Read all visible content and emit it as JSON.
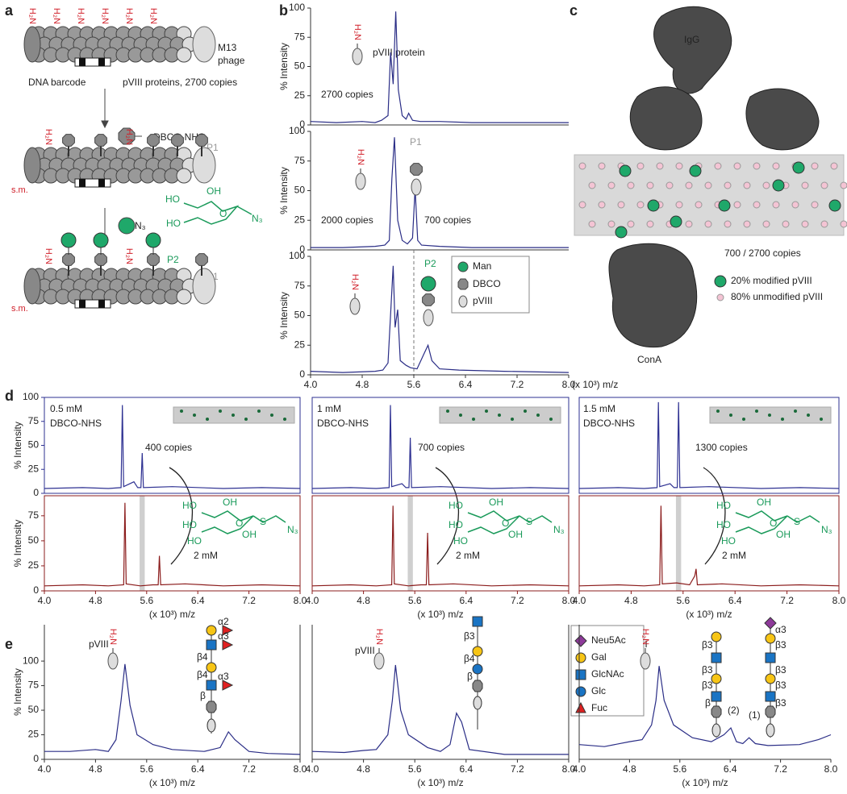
{
  "panel_labels": [
    "a",
    "b",
    "c",
    "d",
    "e"
  ],
  "amine_label": "H₂N",
  "panel_a": {
    "phage_label": [
      "M13",
      "phage"
    ],
    "barcode": "DNA barcode",
    "proteins": "pVIII proteins, 2700 copies",
    "reagent": "DBCO-NHS",
    "sm": "s.m.",
    "p1": "P1",
    "p2": "P2",
    "azide": "N₃",
    "sugar_labels": [
      "HO",
      "OH",
      "HO",
      "O",
      "N₃"
    ]
  },
  "legend_b": [
    "Man",
    "DBCO",
    "pVIII"
  ],
  "panel_c": {
    "igg": "IgG",
    "copies": "700 / 2700 copies",
    "modified": "20% modified pVIII",
    "unmodified": "80% unmodified pVIII",
    "cona": "ConA"
  },
  "panel_d": {
    "sugar_labels": [
      "HO",
      "OH",
      "HO",
      "HO",
      "O",
      "OH",
      "S",
      "N₃"
    ]
  },
  "legend_e": [
    "Neu5Ac",
    "Gal",
    "GlcNAc",
    "Glc",
    "Fuc"
  ],
  "chart_data": [
    {
      "type": "line",
      "color": "#2a2d86",
      "ylabel": "% Intensity",
      "annotations": [
        "pVIII protein",
        "2700 copies"
      ],
      "xlim": [
        4.0,
        8.0
      ],
      "ylim": [
        0,
        100
      ],
      "yticks": [
        0,
        25,
        50,
        75,
        100
      ],
      "x": [
        4.0,
        4.4,
        4.8,
        5.0,
        5.1,
        5.2,
        5.24,
        5.28,
        5.32,
        5.36,
        5.42,
        5.48,
        5.52,
        5.58,
        5.7,
        6.0,
        6.5,
        7.0,
        7.5,
        8.0
      ],
      "values": [
        3,
        2,
        3,
        2,
        4,
        8,
        62,
        35,
        97,
        30,
        8,
        5,
        10,
        4,
        3,
        3,
        2,
        2,
        2,
        2
      ]
    },
    {
      "type": "line",
      "color": "#2a2d86",
      "ylabel": "% Intensity",
      "annotations": [
        "2000 copies",
        "700 copies",
        "P1"
      ],
      "xlim": [
        4.0,
        8.0
      ],
      "ylim": [
        0,
        100
      ],
      "yticks": [
        0,
        25,
        50,
        75,
        100
      ],
      "x": [
        4.0,
        4.5,
        5.0,
        5.15,
        5.22,
        5.26,
        5.3,
        5.35,
        5.42,
        5.5,
        5.58,
        5.62,
        5.66,
        5.72,
        6.0,
        6.5,
        7.0,
        8.0
      ],
      "values": [
        2,
        2,
        3,
        4,
        8,
        60,
        95,
        25,
        8,
        5,
        10,
        52,
        8,
        4,
        3,
        2,
        2,
        2
      ]
    },
    {
      "type": "line",
      "color": "#2a2d86",
      "ylabel": "% Intensity",
      "xlabel": "(x 10³) m/z",
      "annotations": [
        "P2"
      ],
      "vline": 5.6,
      "xlim": [
        4.0,
        8.0
      ],
      "ylim": [
        0,
        100
      ],
      "yticks": [
        0,
        25,
        50,
        75,
        100
      ],
      "xticks": [
        {
          "value": 4,
          "label": "4.0"
        },
        4.8,
        5.6,
        6.4,
        7.2,
        {
          "value": 8,
          "label": "8.0"
        }
      ],
      "x": [
        4.0,
        4.5,
        5.0,
        5.12,
        5.2,
        5.28,
        5.31,
        5.35,
        5.39,
        5.48,
        5.55,
        5.65,
        5.76,
        5.82,
        5.88,
        6.0,
        6.3,
        7.0,
        8.0
      ],
      "values": [
        3,
        2,
        3,
        4,
        10,
        92,
        40,
        55,
        12,
        8,
        6,
        5,
        18,
        25,
        12,
        5,
        4,
        3,
        2
      ]
    },
    {
      "type": "line",
      "color": "#2e3192",
      "ylabel": "% Intensity",
      "annotations": [
        "0.5 mM",
        "DBCO-NHS",
        "400 copies"
      ],
      "xlim": [
        4.0,
        8.0
      ],
      "ylim": [
        0,
        100
      ],
      "yticks": [
        0,
        25,
        50,
        75,
        100
      ],
      "x": [
        4.0,
        4.6,
        5.0,
        5.2,
        5.22,
        5.24,
        5.4,
        5.46,
        5.51,
        5.53,
        5.55,
        6.0,
        6.8,
        7.4,
        8.0
      ],
      "values": [
        5,
        6,
        5,
        6,
        92,
        7,
        12,
        6,
        6,
        42,
        6,
        7,
        5,
        6,
        5
      ]
    },
    {
      "type": "line",
      "color": "#2e3192",
      "annotations": [
        "1 mM",
        "DBCO-NHS",
        "700 copies"
      ],
      "xlim": [
        4.0,
        8.0
      ],
      "ylim": [
        0,
        100
      ],
      "x": [
        4.0,
        4.6,
        5.0,
        5.2,
        5.22,
        5.24,
        5.4,
        5.46,
        5.51,
        5.53,
        5.55,
        6.0,
        6.8,
        7.4,
        8.0
      ],
      "values": [
        5,
        6,
        5,
        6,
        92,
        7,
        10,
        6,
        6,
        58,
        6,
        7,
        5,
        6,
        5
      ]
    },
    {
      "type": "line",
      "color": "#2e3192",
      "annotations": [
        "1.5 mM",
        "DBCO-NHS",
        "1300 copies"
      ],
      "xlim": [
        4.0,
        8.0
      ],
      "ylim": [
        0,
        100
      ],
      "x": [
        4.0,
        4.6,
        5.0,
        5.2,
        5.22,
        5.24,
        5.4,
        5.46,
        5.51,
        5.53,
        5.55,
        6.0,
        6.8,
        7.4,
        8.0
      ],
      "values": [
        5,
        6,
        5,
        6,
        95,
        7,
        10,
        6,
        6,
        95,
        6,
        7,
        5,
        6,
        5
      ]
    },
    {
      "type": "line",
      "color": "#8b1c1c",
      "ylabel": "% Intensity",
      "xlabel": "(x 10³) m/z",
      "annotations": [
        "2 mM"
      ],
      "highlight": [
        5.49,
        5.57
      ],
      "xlim": [
        4.0,
        8.0
      ],
      "ylim": [
        0,
        95
      ],
      "yticks": [
        0,
        25,
        50,
        75
      ],
      "xticks": [
        {
          "value": 4,
          "label": "4.0"
        },
        4.8,
        5.6,
        6.4,
        7.2,
        {
          "value": 8,
          "label": "8.0"
        }
      ],
      "x": [
        4.0,
        4.6,
        5.0,
        5.24,
        5.26,
        5.28,
        5.5,
        5.7,
        5.78,
        5.8,
        5.82,
        6.2,
        6.8,
        7.4,
        8.0
      ],
      "values": [
        5,
        6,
        5,
        6,
        88,
        7,
        5,
        6,
        6,
        35,
        6,
        7,
        5,
        6,
        5
      ]
    },
    {
      "type": "line",
      "color": "#8b1c1c",
      "xlabel": "(x 10³) m/z",
      "annotations": [
        "2 mM"
      ],
      "highlight": [
        5.49,
        5.57
      ],
      "xlim": [
        4.0,
        8.0
      ],
      "ylim": [
        0,
        95
      ],
      "xticks": [
        {
          "value": 4,
          "label": "4.0"
        },
        4.8,
        5.6,
        6.4,
        7.2,
        {
          "value": 8,
          "label": "8.0"
        }
      ],
      "x": [
        4.0,
        4.6,
        5.0,
        5.24,
        5.26,
        5.28,
        5.5,
        5.7,
        5.78,
        5.8,
        5.82,
        6.2,
        6.8,
        7.4,
        8.0
      ],
      "values": [
        5,
        6,
        5,
        6,
        85,
        7,
        5,
        6,
        6,
        58,
        6,
        7,
        5,
        6,
        5
      ]
    },
    {
      "type": "line",
      "color": "#8b1c1c",
      "xlabel": "(x 10³) m/z",
      "annotations": [
        "2 mM"
      ],
      "highlight": [
        5.49,
        5.57
      ],
      "xlim": [
        4.0,
        8.0
      ],
      "ylim": [
        0,
        95
      ],
      "xticks": [
        {
          "value": 4,
          "label": "4.0"
        },
        4.8,
        5.6,
        6.4,
        7.2,
        {
          "value": 8,
          "label": "8.0"
        }
      ],
      "x": [
        4.0,
        4.6,
        5.0,
        5.24,
        5.26,
        5.28,
        5.5,
        5.7,
        5.78,
        5.8,
        5.82,
        6.2,
        6.8,
        7.4,
        8.0
      ],
      "values": [
        5,
        6,
        5,
        6,
        85,
        7,
        8,
        6,
        15,
        22,
        6,
        7,
        5,
        6,
        5
      ]
    },
    {
      "type": "line",
      "color": "#2a2d86",
      "ylabel": "% Intensity",
      "xlabel": "(x 10³) m/z",
      "annotations": [
        "pVIII",
        "α2",
        "β4",
        "α3",
        "β4",
        "α3",
        "β"
      ],
      "xlim": [
        4.0,
        8.0
      ],
      "ylim": [
        0,
        137
      ],
      "yticks": [
        0,
        25,
        50,
        75,
        100
      ],
      "xticks": [
        {
          "value": 4,
          "label": "4.0"
        },
        4.8,
        5.6,
        6.4,
        7.2,
        {
          "value": 8,
          "label": "8.0"
        }
      ],
      "x": [
        4.0,
        4.4,
        4.8,
        5.0,
        5.12,
        5.2,
        5.26,
        5.34,
        5.45,
        5.7,
        6.0,
        6.5,
        6.75,
        6.88,
        6.98,
        7.2,
        7.5,
        8.0
      ],
      "values": [
        8,
        8,
        10,
        8,
        20,
        60,
        97,
        55,
        25,
        15,
        10,
        8,
        12,
        28,
        20,
        8,
        6,
        5
      ]
    },
    {
      "type": "line",
      "color": "#2a2d86",
      "xlabel": "(x 10³) m/z",
      "annotations": [
        "pVIII",
        "β3",
        "β4",
        "β"
      ],
      "xlim": [
        4.0,
        8.0
      ],
      "ylim": [
        0,
        137
      ],
      "xticks": [
        {
          "value": 4,
          "label": "4.0"
        },
        4.8,
        5.6,
        6.4,
        7.2,
        {
          "value": 8,
          "label": "8.0"
        }
      ],
      "x": [
        4.0,
        4.5,
        4.8,
        5.0,
        5.18,
        5.25,
        5.3,
        5.38,
        5.5,
        5.8,
        6.0,
        6.15,
        6.25,
        6.33,
        6.45,
        7.0,
        7.5,
        8.0
      ],
      "values": [
        8,
        7,
        9,
        10,
        25,
        60,
        96,
        50,
        25,
        12,
        8,
        15,
        47,
        38,
        10,
        5,
        5,
        5
      ]
    },
    {
      "type": "line",
      "color": "#2a2d86",
      "xlabel": "(x 10³) m/z",
      "annotations": [
        "pVIII",
        "(2)",
        "(1)",
        "β3",
        "β3",
        "β3",
        "β",
        "α3",
        "β3",
        "β3",
        "β3",
        "β3"
      ],
      "xlim": [
        4.0,
        8.0
      ],
      "ylim": [
        0,
        137
      ],
      "xticks": [
        {
          "value": 4,
          "label": "4.0"
        },
        4.8,
        5.6,
        6.4,
        7.2,
        {
          "value": 8,
          "label": "8.0"
        }
      ],
      "x": [
        4.0,
        4.4,
        4.8,
        5.0,
        5.15,
        5.22,
        5.27,
        5.35,
        5.5,
        5.8,
        6.1,
        6.3,
        6.41,
        6.5,
        6.6,
        6.7,
        6.8,
        7.0,
        7.5,
        7.8,
        8.0
      ],
      "values": [
        15,
        13,
        18,
        20,
        35,
        60,
        95,
        60,
        35,
        22,
        18,
        25,
        32,
        18,
        16,
        22,
        16,
        14,
        15,
        20,
        25
      ]
    }
  ]
}
